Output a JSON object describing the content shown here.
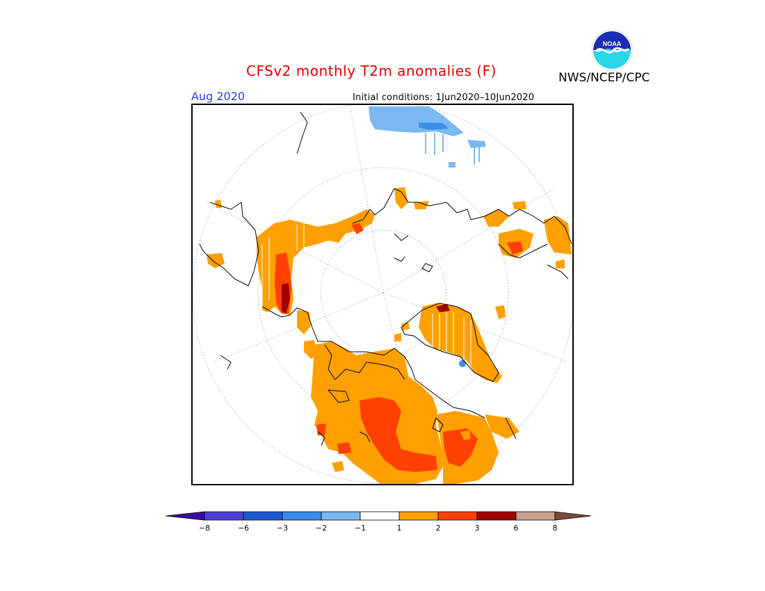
{
  "title": "CFSv2 monthly T2m anomalies (F)",
  "agency": "NWS/NCEP/CPC",
  "logo_text": "NOAA",
  "valid_month": "Aug 2020",
  "initial_conditions": "Initial conditions: 1Jun2020–10Jun2020",
  "colors": {
    "title": "#e00000",
    "month": "#1a3ef0",
    "anomaly_1_2": "#ffa000",
    "anomaly_2_3": "#ff4000",
    "anomaly_3_6": "#a00000",
    "anomaly_neg_1_2": "#7bb8f0",
    "anomaly_neg_2_3": "#3d8ee8"
  },
  "colorbar": {
    "segments": [
      {
        "color": "#3d0aa8"
      },
      {
        "color": "#5040d8"
      },
      {
        "color": "#1e5ad2"
      },
      {
        "color": "#3a8cee"
      },
      {
        "color": "#78b8f0"
      },
      {
        "color": "#ffffff"
      },
      {
        "color": "#ffa000"
      },
      {
        "color": "#ff4000"
      },
      {
        "color": "#a00000"
      },
      {
        "color": "#c8a090"
      },
      {
        "color": "#7a4a3a"
      }
    ],
    "ticks": [
      "−8",
      "−6",
      "−3",
      "−2",
      "−1",
      "1",
      "2",
      "3",
      "6",
      "8"
    ]
  }
}
